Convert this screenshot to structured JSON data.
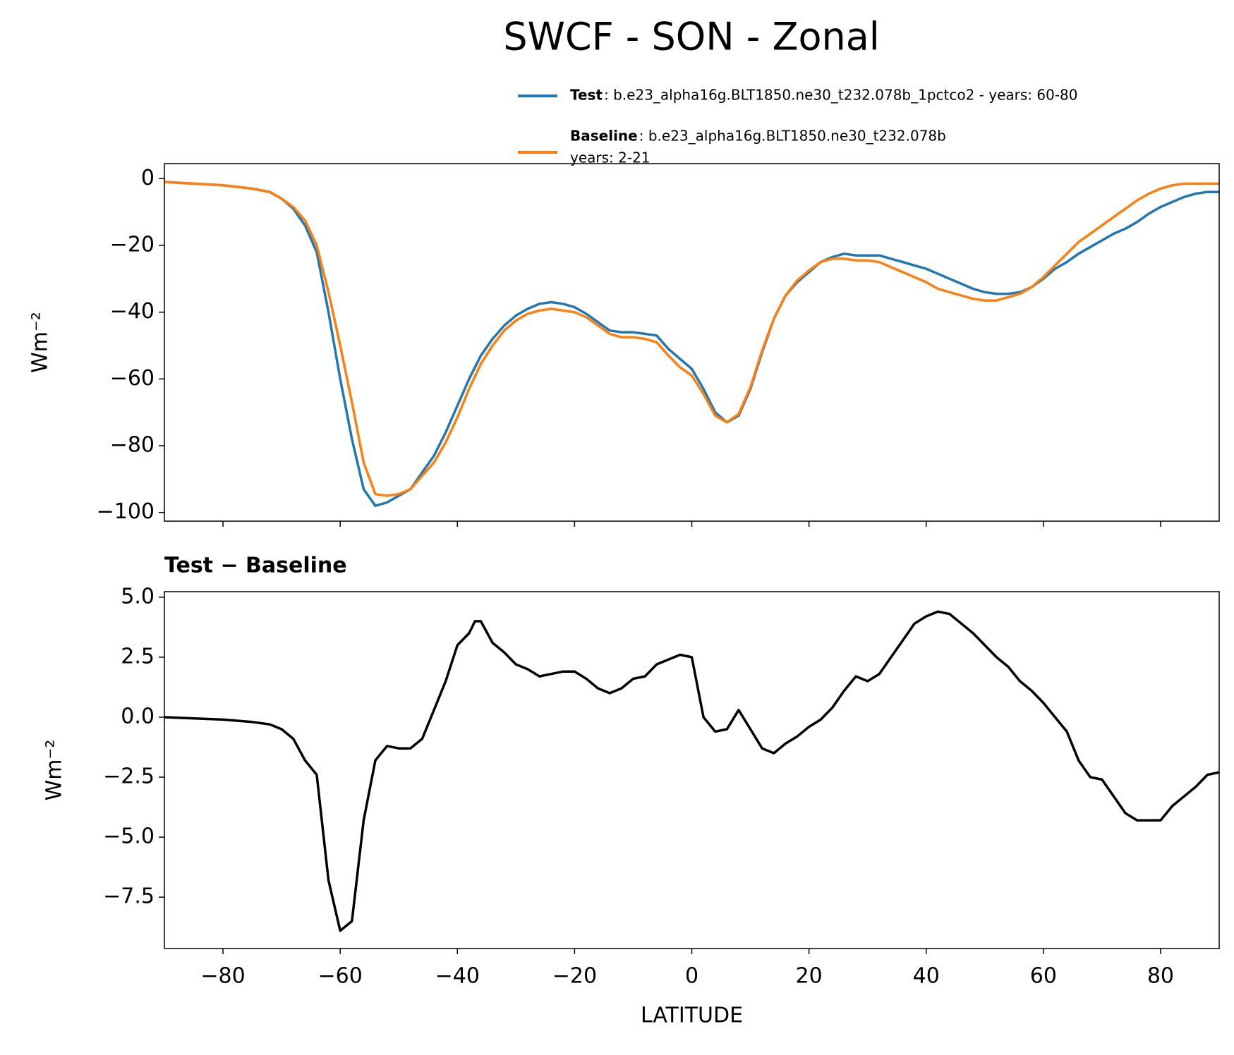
{
  "title": "SWCF - SON - Zonal",
  "chart_data": [
    {
      "type": "line",
      "xlim": [
        -90,
        90
      ],
      "ylim": [
        -102.6,
        4.5
      ],
      "xticks": [
        {
          "value": -80,
          "label": "−80"
        },
        {
          "value": -60,
          "label": "−60"
        },
        {
          "value": -40,
          "label": "−40"
        },
        {
          "value": -20,
          "label": "−20"
        },
        0,
        20,
        40,
        60,
        80
      ],
      "xtick_labels": false,
      "yticks": [
        0,
        {
          "value": -20,
          "label": "−20"
        },
        {
          "value": -40,
          "label": "−40"
        },
        {
          "value": -60,
          "label": "−60"
        },
        {
          "value": -80,
          "label": "−80"
        },
        {
          "value": -100,
          "label": "−100"
        }
      ],
      "ylabel": "Wm⁻²",
      "legend": "upper right",
      "x": [
        -90,
        -80,
        -75,
        -72,
        -70,
        -68,
        -66,
        -64,
        -62,
        -60,
        -58,
        -56,
        -54,
        -52,
        -50,
        -48,
        -46,
        -44,
        -42,
        -40,
        -38,
        -36,
        -34,
        -32,
        -30,
        -28,
        -26,
        -24,
        -22,
        -20,
        -18,
        -16,
        -14,
        -12,
        -10,
        -8,
        -6,
        -4,
        -2,
        0,
        2,
        4,
        6,
        8,
        10,
        12,
        14,
        16,
        18,
        20,
        22,
        24,
        26,
        28,
        30,
        32,
        34,
        36,
        38,
        40,
        42,
        44,
        46,
        48,
        50,
        52,
        54,
        56,
        58,
        60,
        62,
        64,
        66,
        68,
        70,
        72,
        74,
        76,
        78,
        80,
        82,
        84,
        86,
        88,
        90
      ],
      "series": [
        {
          "name": "Test",
          "detail": [
            ": b.e23_alpha16g.BLT1850.ne30_t232.078b_1pctco2 - years: 60-80"
          ],
          "color": "#1f77b4",
          "values": [
            -1,
            -2,
            -3,
            -4,
            -6,
            -9,
            -14,
            -22,
            -40,
            -60,
            -78,
            -93,
            -98,
            -97,
            -95,
            -93,
            -88,
            -83,
            -76,
            -68,
            -60,
            -53,
            -48,
            -44,
            -41,
            -39,
            -37.5,
            -37,
            -37.5,
            -38.5,
            -40.5,
            -43,
            -45.5,
            -46,
            -46,
            -46.5,
            -47,
            -51,
            -54,
            -57,
            -63,
            -70,
            -73,
            -71,
            -63,
            -52,
            -42,
            -35,
            -31,
            -28,
            -25,
            -23.5,
            -22.5,
            -23,
            -23,
            -23,
            -24,
            -25,
            -26,
            -27,
            -28.5,
            -30,
            -31.5,
            -33,
            -34,
            -34.5,
            -34.5,
            -34,
            -32.5,
            -30,
            -27,
            -25,
            -22.5,
            -20.5,
            -18.5,
            -16.5,
            -15,
            -13,
            -10.5,
            -8.5,
            -7,
            -5.5,
            -4.5,
            -4,
            -4
          ]
        },
        {
          "name": "Baseline",
          "detail": [
            ": b.e23_alpha16g.BLT1850.ne30_t232.078b",
            "years: 2-21"
          ],
          "color": "#ff7f0e",
          "values": [
            -1,
            -2,
            -3,
            -4,
            -6,
            -8.5,
            -12.5,
            -20,
            -34,
            -50,
            -67,
            -85,
            -94.5,
            -95,
            -94.5,
            -93,
            -89,
            -85,
            -79,
            -71.5,
            -63,
            -55.5,
            -50,
            -45.5,
            -42.5,
            -40.5,
            -39.5,
            -39,
            -39.5,
            -40,
            -41.5,
            -44,
            -46.5,
            -47.5,
            -47.5,
            -48,
            -49,
            -53,
            -56.5,
            -59,
            -64.5,
            -71,
            -73,
            -70.5,
            -62.5,
            -51.5,
            -42,
            -35,
            -30.5,
            -27.5,
            -25,
            -24,
            -24,
            -24.5,
            -24.5,
            -25,
            -26.5,
            -28,
            -29.5,
            -31,
            -33,
            -34,
            -35,
            -36,
            -36.5,
            -36.5,
            -35.5,
            -34.5,
            -32.5,
            -29.5,
            -26,
            -22.5,
            -19,
            -16.5,
            -14,
            -11.5,
            -9,
            -6.5,
            -4.5,
            -3,
            -2,
            -1.5,
            -1.5,
            -1.5,
            -1.5
          ]
        }
      ]
    },
    {
      "type": "line",
      "title": "Test − Baseline",
      "xlim": [
        -90,
        90
      ],
      "ylim": [
        -9.64,
        5.23
      ],
      "xticks": [
        {
          "value": -80,
          "label": "−80"
        },
        {
          "value": -60,
          "label": "−60"
        },
        {
          "value": -40,
          "label": "−40"
        },
        {
          "value": -20,
          "label": "−20"
        },
        0,
        20,
        40,
        60,
        80
      ],
      "xtick_labels": true,
      "yticks": [
        {
          "value": 5,
          "label": "5.0"
        },
        2.5,
        {
          "value": 0,
          "label": "0.0"
        },
        {
          "value": -2.5,
          "label": "−2.5"
        },
        {
          "value": -5,
          "label": "−5.0"
        },
        {
          "value": -7.5,
          "label": "−7.5"
        }
      ],
      "xlabel": "LATITUDE",
      "ylabel": "Wm⁻²",
      "x": [
        -90,
        -80,
        -75,
        -72,
        -70,
        -68,
        -66,
        -64,
        -62,
        -60,
        -58,
        -56,
        -54,
        -52,
        -50,
        -48,
        -46,
        -44,
        -42,
        -40,
        -38,
        -37,
        -36,
        -34,
        -32,
        -30,
        -28,
        -26,
        -24,
        -22,
        -20,
        -18,
        -16,
        -14,
        -12,
        -10,
        -8,
        -6,
        -4,
        -2,
        0,
        2,
        4,
        6,
        8,
        10,
        12,
        14,
        16,
        18,
        20,
        22,
        24,
        26,
        28,
        30,
        32,
        34,
        36,
        38,
        40,
        42,
        44,
        46,
        48,
        50,
        52,
        54,
        56,
        58,
        60,
        62,
        64,
        66,
        68,
        70,
        72,
        74,
        76,
        78,
        80,
        82,
        84,
        86,
        88,
        90
      ],
      "series": [
        {
          "color": "#000000",
          "values": [
            0,
            -0.1,
            -0.2,
            -0.3,
            -0.5,
            -0.9,
            -1.8,
            -2.4,
            -6.8,
            -8.9,
            -8.5,
            -4.3,
            -1.8,
            -1.2,
            -1.3,
            -1.3,
            -0.9,
            0.3,
            1.5,
            3.0,
            3.5,
            4.0,
            4.0,
            3.1,
            2.7,
            2.2,
            2.0,
            1.7,
            1.8,
            1.9,
            1.9,
            1.6,
            1.2,
            1.0,
            1.2,
            1.6,
            1.7,
            2.2,
            2.4,
            2.6,
            2.5,
            0.0,
            -0.6,
            -0.5,
            0.3,
            -0.5,
            -1.3,
            -1.5,
            -1.1,
            -0.8,
            -0.4,
            -0.1,
            0.4,
            1.1,
            1.7,
            1.5,
            1.8,
            2.5,
            3.2,
            3.9,
            4.2,
            4.4,
            4.3,
            3.9,
            3.5,
            3.0,
            2.5,
            2.1,
            1.5,
            1.1,
            0.6,
            0.0,
            -0.6,
            -1.8,
            -2.5,
            -2.6,
            -3.3,
            -4.0,
            -4.3,
            -4.3,
            -4.3,
            -3.7,
            -3.3,
            -2.9,
            -2.4,
            -2.3
          ]
        }
      ]
    }
  ]
}
